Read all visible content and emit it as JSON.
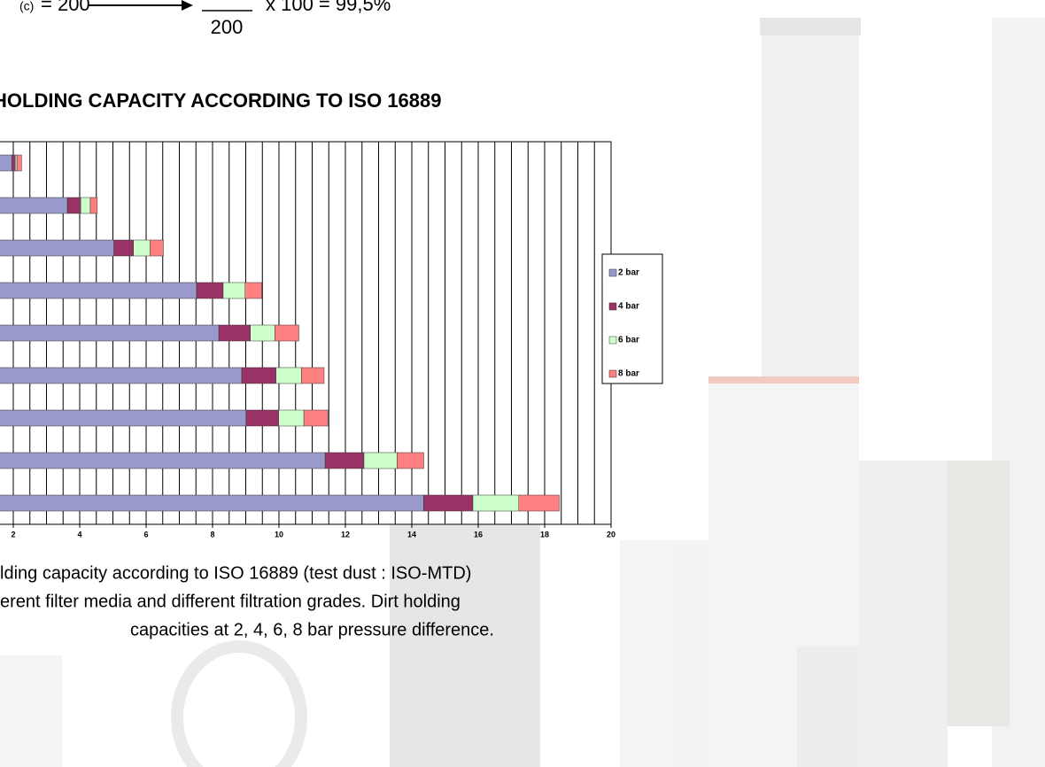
{
  "header": {
    "subscript": "(c)",
    "lhs": "= 200",
    "denominator": "200",
    "rhs": "x 100 = 99,5%"
  },
  "chart_data": {
    "type": "stacked-bar-horizontal",
    "title": "HOLDING CAPACITY ACCORDING TO ISO 16889",
    "categories": [
      null,
      null,
      null,
      null,
      null,
      null,
      null,
      null,
      null
    ],
    "series": [
      {
        "name": "2 bar",
        "color": "#9999cc",
        "values": [
          1.96,
          3.63,
          5.03,
          7.52,
          8.19,
          8.88,
          9.01,
          11.39,
          14.36
        ]
      },
      {
        "name": "4 bar",
        "color": "#993366",
        "values": [
          0.1,
          0.4,
          0.59,
          0.8,
          0.95,
          1.03,
          0.98,
          1.17,
          1.48
        ]
      },
      {
        "name": "6 bar",
        "color": "#ccffcc",
        "values": [
          0.05,
          0.29,
          0.5,
          0.66,
          0.74,
          0.77,
          0.76,
          1.0,
          1.38
        ]
      },
      {
        "name": "8 bar",
        "color": "#ff8080",
        "values": [
          0.14,
          0.21,
          0.4,
          0.5,
          0.72,
          0.68,
          0.72,
          0.8,
          1.22
        ]
      }
    ],
    "xlim": [
      0,
      20
    ],
    "xticks": [
      2,
      4,
      6,
      8,
      10,
      12,
      14,
      16,
      18,
      20
    ],
    "grid": true,
    "grid_step": 0.5,
    "legend": "right"
  },
  "caption": [
    "lding capacity according to ISO 16889 (test dust : ISO-MTD)",
    "erent filter media and different filtration grades. Dirt holding",
    "capacities at 2, 4, 6, 8 bar pressure difference."
  ]
}
